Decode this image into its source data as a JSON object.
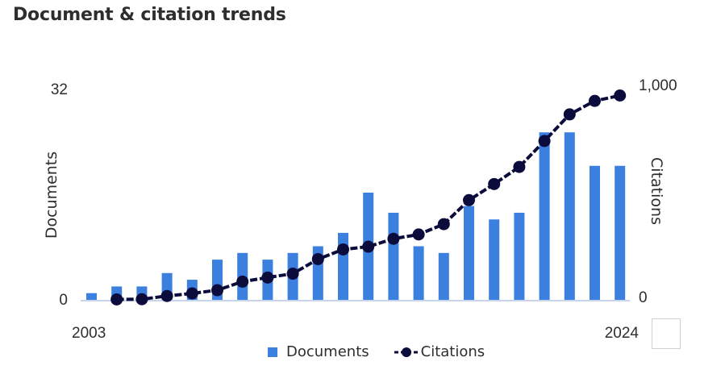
{
  "title": "Document & citation trends",
  "legend": {
    "documents": "Documents",
    "citations": "Citations"
  },
  "colors": {
    "bar": "#3b7fdf",
    "line": "#0c0c3c",
    "axis": "#c8d4ea"
  },
  "chart_data": {
    "type": "bar+line",
    "title": "Document & citation trends",
    "x": [
      "2003",
      "2004",
      "2005",
      "2006",
      "2007",
      "2008",
      "2009",
      "2010",
      "2011",
      "2012",
      "2013",
      "2014",
      "2015",
      "2016",
      "2017",
      "2018",
      "2019",
      "2020",
      "2021",
      "2022",
      "2023",
      "2024"
    ],
    "x_tick_labels": [
      "2003",
      "2024"
    ],
    "series": [
      {
        "name": "Documents",
        "type": "bar",
        "axis": "left",
        "values": [
          1,
          2,
          2,
          4,
          3,
          6,
          7,
          6,
          7,
          8,
          10,
          16,
          13,
          8,
          7,
          14,
          12,
          13,
          25,
          25,
          20,
          20
        ]
      },
      {
        "name": "Citations",
        "type": "line",
        "axis": "right",
        "values": [
          null,
          2,
          3,
          18,
          30,
          45,
          85,
          104,
          122,
          190,
          235,
          248,
          285,
          305,
          353,
          465,
          540,
          620,
          741,
          865,
          928,
          953
        ]
      }
    ],
    "y_left": {
      "label": "Documents",
      "ylim": [
        0,
        32
      ],
      "tick_labels": [
        "0",
        "32"
      ]
    },
    "y_right": {
      "label": "Citations",
      "ylim": [
        0,
        1000
      ],
      "tick_labels": [
        "0",
        "1,000"
      ]
    },
    "grid": false,
    "legend_position": "bottom"
  }
}
